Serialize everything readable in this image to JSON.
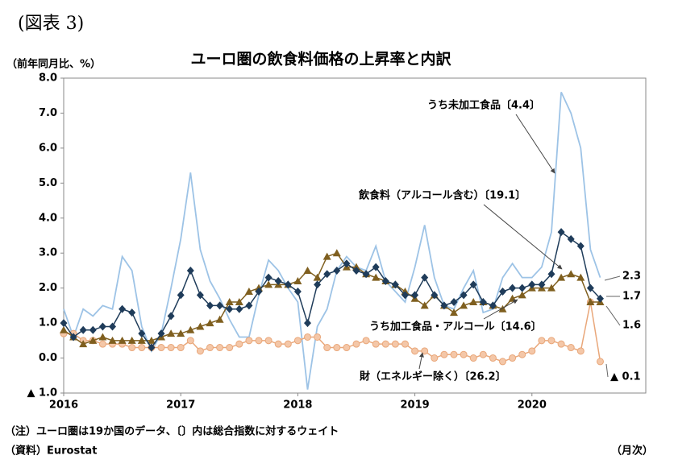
{
  "figure_label": "(図表 3)",
  "chart_data": {
    "type": "line",
    "title": "ユーロ圏の飲食料価格の上昇率と内訳",
    "y_axis_label": "（前年同月比、%）",
    "x_axis_label": "（月次）",
    "notes": [
      "（注）ユーロ圏は19か国のデータ、〔〕内は総合指数に対するウェイト",
      "（資料）Eurostat"
    ],
    "categories": [
      "2016",
      null,
      null,
      null,
      null,
      null,
      null,
      null,
      null,
      null,
      null,
      null,
      "2017",
      null,
      null,
      null,
      null,
      null,
      null,
      null,
      null,
      null,
      null,
      null,
      "2018",
      null,
      null,
      null,
      null,
      null,
      null,
      null,
      null,
      null,
      null,
      null,
      "2019",
      null,
      null,
      null,
      null,
      null,
      null,
      null,
      null,
      null,
      null,
      null,
      "2020",
      null,
      null,
      null,
      null,
      null,
      null,
      null
    ],
    "ylim": [
      -1,
      8
    ],
    "yticks": [
      {
        "value": -1,
        "label": "▲ 1.0"
      },
      {
        "value": 0,
        "label": "0.0"
      },
      {
        "value": 1,
        "label": "1.0"
      },
      {
        "value": 2,
        "label": "2.0"
      },
      {
        "value": 3,
        "label": "3.0"
      },
      {
        "value": 4,
        "label": "4.0"
      },
      {
        "value": 5,
        "label": "5.0"
      },
      {
        "value": 6,
        "label": "6.0"
      },
      {
        "value": 7,
        "label": "7.0"
      },
      {
        "value": 8,
        "label": "8.0"
      }
    ],
    "grid": false,
    "series": [
      {
        "name": "うち未加工食品〔4.4〕",
        "color": "#9dc3e6",
        "marker": "none",
        "values": [
          1.4,
          0.6,
          1.4,
          1.2,
          1.5,
          1.4,
          2.9,
          2.5,
          0.9,
          0.2,
          0.7,
          2.0,
          3.4,
          5.3,
          3.1,
          2.2,
          1.7,
          1.1,
          0.6,
          0.6,
          1.8,
          2.8,
          2.5,
          2.0,
          1.6,
          -0.9,
          0.9,
          1.4,
          2.5,
          2.9,
          2.6,
          2.5,
          3.2,
          2.2,
          1.9,
          1.6,
          2.6,
          3.8,
          2.3,
          1.5,
          1.4,
          2.0,
          2.5,
          1.3,
          1.4,
          2.3,
          2.7,
          2.3,
          2.3,
          2.6,
          3.6,
          7.6,
          7.0,
          6.0,
          3.1,
          2.3
        ],
        "end_label": "2.3"
      },
      {
        "name": "飲食料（アルコール含む）〔19.1〕",
        "color": "#1f3c5a",
        "marker": "diamond",
        "values": [
          1.0,
          0.6,
          0.8,
          0.8,
          0.9,
          0.9,
          1.4,
          1.3,
          0.7,
          0.3,
          0.7,
          1.2,
          1.8,
          2.5,
          1.8,
          1.5,
          1.5,
          1.4,
          1.4,
          1.5,
          1.9,
          2.3,
          2.2,
          2.1,
          1.9,
          1.0,
          2.1,
          2.4,
          2.5,
          2.7,
          2.5,
          2.4,
          2.6,
          2.2,
          2.1,
          1.8,
          1.8,
          2.3,
          1.8,
          1.5,
          1.6,
          1.8,
          2.1,
          1.6,
          1.5,
          1.9,
          2.0,
          2.0,
          2.1,
          2.1,
          2.4,
          3.6,
          3.4,
          3.2,
          2.0,
          1.7
        ],
        "end_label": "1.7"
      },
      {
        "name": "うち加工食品・アルコール〔14.6〕",
        "color": "#7f5f1f",
        "marker": "triangle",
        "values": [
          0.8,
          0.6,
          0.4,
          0.5,
          0.6,
          0.5,
          0.5,
          0.5,
          0.5,
          0.5,
          0.6,
          0.7,
          0.7,
          0.8,
          0.9,
          1.0,
          1.1,
          1.6,
          1.6,
          1.9,
          2.0,
          2.1,
          2.1,
          2.1,
          2.2,
          2.5,
          2.3,
          2.9,
          3.0,
          2.6,
          2.6,
          2.4,
          2.3,
          2.2,
          2.1,
          1.9,
          1.7,
          1.5,
          1.8,
          1.5,
          1.3,
          1.5,
          1.6,
          1.6,
          1.5,
          1.4,
          1.7,
          1.8,
          2.0,
          2.0,
          2.0,
          2.3,
          2.4,
          2.3,
          1.6,
          1.6
        ],
        "end_label": "1.6"
      },
      {
        "name": "財（エネルギー除く）〔26.2〕",
        "color": "#e9a77a",
        "marker": "circle",
        "values": [
          0.7,
          0.7,
          0.5,
          0.5,
          0.4,
          0.4,
          0.4,
          0.3,
          0.3,
          0.3,
          0.3,
          0.3,
          0.3,
          0.5,
          0.2,
          0.3,
          0.3,
          0.3,
          0.4,
          0.5,
          0.5,
          0.5,
          0.4,
          0.4,
          0.5,
          0.6,
          0.6,
          0.3,
          0.3,
          0.3,
          0.4,
          0.5,
          0.4,
          0.4,
          0.4,
          0.4,
          0.2,
          0.2,
          0.0,
          0.1,
          0.1,
          0.1,
          0.0,
          0.1,
          0.0,
          -0.1,
          0.0,
          0.1,
          0.2,
          0.5,
          0.5,
          0.4,
          0.3,
          0.2,
          1.6,
          -0.1
        ],
        "end_label": "▲ 0.1"
      }
    ]
  }
}
